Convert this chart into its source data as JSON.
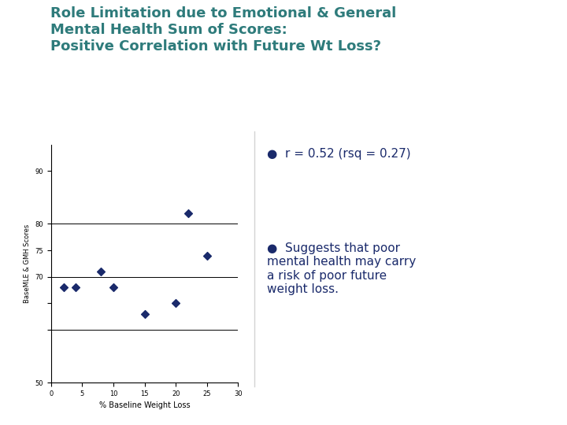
{
  "title_line1": "Role Limitation due to Emotional & General",
  "title_line2": "Mental Health Sum of Scores:",
  "title_line3": "Positive Correlation with Future Wt Loss?",
  "title_color": "#2e7b7b",
  "header_bar_color": "#1e3a5f",
  "bg_color": "#ffffff",
  "left_panel_color": "#a8c890",
  "scatter_x": [
    2,
    4,
    8,
    10,
    15,
    20,
    22,
    25
  ],
  "scatter_y": [
    68,
    68,
    71,
    68,
    63,
    65,
    82,
    74
  ],
  "scatter_color": "#1a2a6b",
  "xlabel": "% Baseline Weight Loss",
  "ylabel": "BaseMLE & GMH Scores",
  "xlim": [
    0,
    30
  ],
  "ylim": [
    50,
    95
  ],
  "yticks": [
    50,
    60,
    65,
    70,
    75,
    80,
    90
  ],
  "ytick_labels": [
    "50",
    "",
    "",
    "70",
    "75",
    "80",
    "90"
  ],
  "xticks": [
    0,
    5,
    10,
    15,
    20,
    25,
    30
  ],
  "hlines": [
    60,
    70,
    80
  ],
  "bullet1": "r = 0.52 (rsq = 0.27)",
  "bullet2": "Suggests that poor\nmental health may carry\na risk of poor future\nweight loss.",
  "bullet_color": "#1a2a6b",
  "text_color": "#1a2a6b",
  "font_size_title": 13,
  "font_size_bullet": 11,
  "font_size_axis": 6
}
